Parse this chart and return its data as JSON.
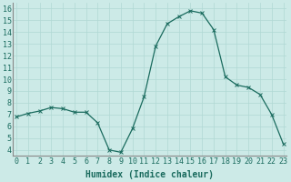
{
  "title": "",
  "x": [
    0,
    1,
    2,
    3,
    4,
    5,
    6,
    7,
    8,
    9,
    10,
    11,
    12,
    13,
    14,
    15,
    16,
    17,
    18,
    19,
    20,
    21,
    22,
    23
  ],
  "y": [
    6.8,
    7.1,
    7.3,
    7.6,
    7.5,
    7.2,
    7.2,
    6.3,
    4.0,
    3.8,
    5.8,
    8.5,
    12.8,
    14.7,
    15.3,
    15.8,
    15.6,
    14.2,
    10.2,
    9.5,
    9.3,
    8.7,
    7.0,
    4.5
  ],
  "xlabel": "Humidex (Indice chaleur)",
  "ylabel": "",
  "xlim": [
    -0.3,
    23.3
  ],
  "ylim": [
    3.5,
    16.5
  ],
  "yticks": [
    4,
    5,
    6,
    7,
    8,
    9,
    10,
    11,
    12,
    13,
    14,
    15,
    16
  ],
  "xticks": [
    0,
    1,
    2,
    3,
    4,
    5,
    6,
    7,
    8,
    9,
    10,
    11,
    12,
    13,
    14,
    15,
    16,
    17,
    18,
    19,
    20,
    21,
    22,
    23
  ],
  "line_color": "#1a6b5e",
  "marker": "x",
  "bg_color": "#cceae7",
  "grid_color": "#b0d8d4",
  "xlabel_fontsize": 7,
  "tick_fontsize": 6,
  "xlabel_bold": true
}
